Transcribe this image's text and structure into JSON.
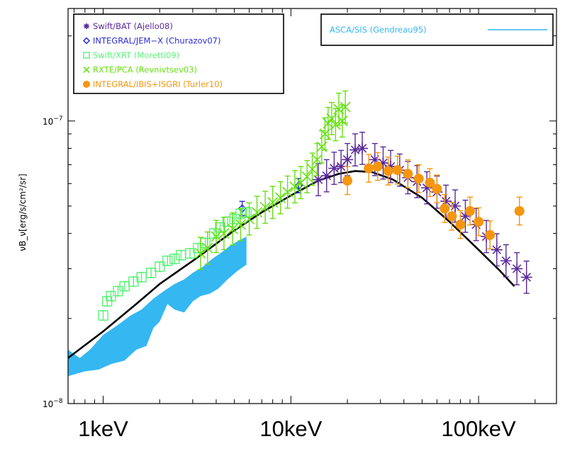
{
  "chart_data": {
    "type": "scatter",
    "ylabel": "νB_ν[erg/s/cm²/sr]",
    "x_scale": "log",
    "y_scale": "log",
    "xlim": [
      0.65,
      260
    ],
    "ylim": [
      1e-08,
      2.5e-07
    ],
    "y_tick_labels": [
      {
        "value": 1e-07,
        "base": "10",
        "exp": "−7"
      },
      {
        "value": 1e-08,
        "base": "10",
        "exp": "−8"
      }
    ],
    "x_tick_labels": [
      "1keV",
      "10keV",
      "100keV"
    ],
    "x_tick_values": [
      1,
      10,
      100
    ],
    "legend_left": [
      {
        "marker": "asterisk",
        "color": "#5b2a9a",
        "label": "Swift/BAT (Ajello08)"
      },
      {
        "marker": "diamond",
        "color": "#2b2bd6",
        "label": "INTEGRAL/JEM−X (Churazov07)"
      },
      {
        "marker": "square",
        "color": "#5ef07a",
        "label": "Swift/XRT (Moretti09)"
      },
      {
        "marker": "cross",
        "color": "#66e012",
        "label": "RXTE/PCA (Revnivtsev03)"
      },
      {
        "marker": "circle",
        "color": "#f5960f",
        "label": "INTEGRAL/IBIS+ISGRI (Turler10)"
      }
    ],
    "legend_right": {
      "color": "#35b7f2",
      "label": "ASCA/SIS (Gendreau95)"
    },
    "series": [
      {
        "name": "Swift/BAT (Ajello08)",
        "color": "#5b2a9a",
        "marker": "asterisk",
        "points": [
          [
            14,
            6.2e-08
          ],
          [
            15.5,
            6.4e-08
          ],
          [
            17,
            6.8e-08
          ],
          [
            18.5,
            6.9e-08
          ],
          [
            20,
            7.3e-08
          ],
          [
            22,
            7.9e-08
          ],
          [
            24,
            8e-08
          ],
          [
            28,
            7.3e-08
          ],
          [
            31,
            7.1e-08
          ],
          [
            34,
            6.9e-08
          ],
          [
            38,
            6.7e-08
          ],
          [
            42,
            6.3e-08
          ],
          [
            47,
            6.1e-08
          ],
          [
            53,
            5.8e-08
          ],
          [
            60,
            5.6e-08
          ],
          [
            67,
            5.2e-08
          ],
          [
            75,
            5e-08
          ],
          [
            85,
            4.6e-08
          ],
          [
            97,
            4.3e-08
          ],
          [
            110,
            3.9e-08
          ],
          [
            125,
            3.5e-08
          ],
          [
            140,
            3.2e-08
          ],
          [
            160,
            3e-08
          ],
          [
            180,
            2.8e-08
          ]
        ],
        "err_frac": 0.14
      },
      {
        "name": "INTEGRAL/JEM-X (Churazov07)",
        "color": "#2b2bd6",
        "marker": "diamond",
        "points": [
          [
            5.5,
            4.9e-08
          ],
          [
            11,
            5.9e-08
          ]
        ],
        "err_frac": 0.06
      },
      {
        "name": "Swift/XRT (Moretti09)",
        "color": "#5ef07a",
        "marker": "square",
        "points": [
          [
            1.0,
            2.05e-08
          ],
          [
            1.05,
            2.3e-08
          ],
          [
            1.1,
            2.4e-08
          ],
          [
            1.2,
            2.5e-08
          ],
          [
            1.3,
            2.6e-08
          ],
          [
            1.45,
            2.7e-08
          ],
          [
            1.6,
            2.8e-08
          ],
          [
            1.8,
            2.9e-08
          ],
          [
            2.0,
            3.05e-08
          ],
          [
            2.2,
            3.2e-08
          ],
          [
            2.4,
            3.25e-08
          ],
          [
            2.6,
            3.35e-08
          ],
          [
            2.9,
            3.4e-08
          ],
          [
            3.2,
            3.55e-08
          ],
          [
            3.5,
            3.7e-08
          ],
          [
            3.9,
            4e-08
          ],
          [
            4.2,
            4.2e-08
          ],
          [
            4.6,
            4.4e-08
          ],
          [
            5.0,
            4.5e-08
          ],
          [
            5.4,
            4.7e-08
          ],
          [
            5.8,
            4.75e-08
          ]
        ],
        "err_frac": 0.04
      },
      {
        "name": "RXTE/PCA (Revnivtsev03)",
        "color": "#66e012",
        "marker": "cross",
        "points": [
          [
            3.3,
            3.4e-08
          ],
          [
            3.6,
            3.55e-08
          ],
          [
            4.0,
            3.9e-08
          ],
          [
            4.4,
            4e-08
          ],
          [
            4.9,
            4.15e-08
          ],
          [
            5.4,
            4.3e-08
          ],
          [
            6.0,
            4.5e-08
          ],
          [
            6.6,
            4.75e-08
          ],
          [
            7.3,
            4.95e-08
          ],
          [
            8.0,
            5.15e-08
          ],
          [
            8.8,
            5.35e-08
          ],
          [
            9.6,
            5.6e-08
          ],
          [
            10.5,
            5.85e-08
          ],
          [
            11.3,
            6.05e-08
          ],
          [
            12.2,
            6.35e-08
          ],
          [
            13.0,
            6.75e-08
          ],
          [
            13.8,
            7.3e-08
          ],
          [
            14.6,
            8.1e-08
          ],
          [
            15.2,
            9e-08
          ],
          [
            15.8,
            9.8e-08
          ],
          [
            16.5,
            1.02e-07
          ],
          [
            17.3,
            9.7e-08
          ],
          [
            18.0,
            1.1e-07
          ],
          [
            18.8,
            1e-07
          ],
          [
            19.5,
            1.12e-07
          ]
        ],
        "err_frac": 0.14
      },
      {
        "name": "INTEGRAL/IBIS+ISGRI (Turler10)",
        "color": "#f5960f",
        "marker": "circle",
        "points": [
          [
            20,
            6.15e-08
          ],
          [
            26,
            6.8e-08
          ],
          [
            29,
            6.9e-08
          ],
          [
            33,
            6.65e-08
          ],
          [
            37,
            6.7e-08
          ],
          [
            42,
            6.5e-08
          ],
          [
            48,
            6.25e-08
          ],
          [
            55,
            6.05e-08
          ],
          [
            60,
            5.75e-08
          ],
          [
            66,
            4.9e-08
          ],
          [
            72,
            4.6e-08
          ],
          [
            80,
            4.3e-08
          ],
          [
            90,
            4.8e-08
          ],
          [
            100,
            4.4e-08
          ],
          [
            115,
            3.95e-08
          ],
          [
            165,
            4.8e-08
          ]
        ],
        "err_frac": 0.12
      }
    ],
    "model_curve": {
      "color": "#000000",
      "points": [
        [
          0.65,
          1.45e-08
        ],
        [
          1.0,
          1.8e-08
        ],
        [
          1.5,
          2.25e-08
        ],
        [
          2.0,
          2.65e-08
        ],
        [
          3.0,
          3.2e-08
        ],
        [
          5.0,
          4.1e-08
        ],
        [
          7.0,
          4.75e-08
        ],
        [
          10.0,
          5.45e-08
        ],
        [
          14.0,
          6.15e-08
        ],
        [
          18.0,
          6.5e-08
        ],
        [
          22.0,
          6.65e-08
        ],
        [
          27.0,
          6.6e-08
        ],
        [
          35.0,
          6.2e-08
        ],
        [
          50.0,
          5.35e-08
        ],
        [
          70.0,
          4.4e-08
        ],
        [
          100.0,
          3.5e-08
        ],
        [
          130.0,
          2.95e-08
        ],
        [
          155.0,
          2.6e-08
        ]
      ]
    },
    "band": {
      "color": "#35b7f2",
      "upper": [
        [
          0.65,
          1.55e-08
        ],
        [
          0.75,
          1.45e-08
        ],
        [
          0.85,
          1.55e-08
        ],
        [
          1.0,
          1.75e-08
        ],
        [
          1.2,
          1.9e-08
        ],
        [
          1.4,
          2.05e-08
        ],
        [
          1.6,
          2.15e-08
        ],
        [
          1.85,
          2.35e-08
        ],
        [
          2.1,
          2.5e-08
        ],
        [
          2.4,
          2.65e-08
        ],
        [
          2.7,
          2.75e-08
        ],
        [
          3.0,
          2.9e-08
        ],
        [
          3.4,
          3.05e-08
        ],
        [
          3.8,
          3.25e-08
        ],
        [
          4.2,
          3.4e-08
        ],
        [
          4.7,
          3.6e-08
        ],
        [
          5.2,
          3.75e-08
        ],
        [
          5.8,
          3.9e-08
        ]
      ],
      "lower": [
        [
          5.8,
          3.1e-08
        ],
        [
          5.2,
          2.95e-08
        ],
        [
          4.6,
          2.75e-08
        ],
        [
          4.1,
          2.55e-08
        ],
        [
          3.7,
          2.45e-08
        ],
        [
          3.3,
          2.4e-08
        ],
        [
          3.0,
          2.3e-08
        ],
        [
          2.7,
          2.1e-08
        ],
        [
          2.4,
          2.15e-08
        ],
        [
          2.2,
          2.25e-08
        ],
        [
          2.0,
          1.95e-08
        ],
        [
          1.85,
          1.85e-08
        ],
        [
          1.7,
          1.6e-08
        ],
        [
          1.5,
          1.55e-08
        ],
        [
          1.3,
          1.42e-08
        ],
        [
          1.1,
          1.38e-08
        ],
        [
          0.95,
          1.32e-08
        ],
        [
          0.8,
          1.3e-08
        ],
        [
          0.65,
          1.25e-08
        ]
      ]
    }
  }
}
